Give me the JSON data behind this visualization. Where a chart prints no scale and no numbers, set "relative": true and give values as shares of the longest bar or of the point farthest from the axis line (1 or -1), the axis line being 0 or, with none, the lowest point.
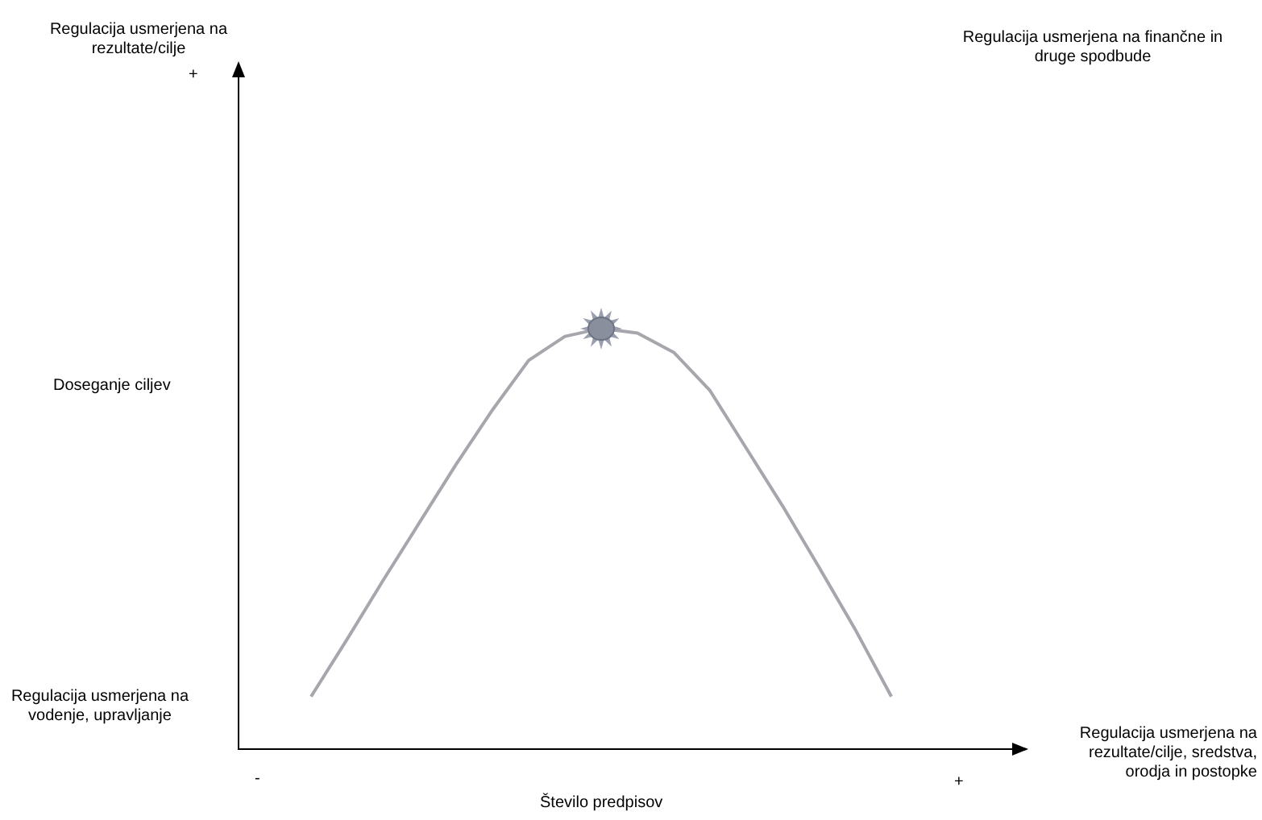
{
  "chart_data": {
    "type": "line",
    "relative": true,
    "xlabel": "Število predpisov",
    "annotations": [
      "Regulacija usmerjena na rezultate/cilje",
      "Regulacija usmerjena na finančne in druge spodbude",
      "Regulacija usmerjena na vodenje, upravljanje",
      "Regulacija usmerjena na rezultate/cilje, sredstva, orodja in postopke",
      "+",
      "-",
      "+",
      "Doseganje ciljev"
    ],
    "categories": [
      null,
      null,
      null,
      null,
      null,
      null,
      null,
      null,
      null,
      null,
      null,
      null,
      null,
      null,
      null,
      null,
      null
    ],
    "series": [
      {
        "color": "#a6a6ad",
        "values": [
          0.125,
          0.262,
          0.403,
          0.54,
          0.677,
          0.806,
          0.924,
          0.981,
          1,
          0.989,
          0.943,
          0.852,
          0.715,
          0.578,
          0.433,
          0.285,
          0.125
        ]
      }
    ],
    "grid": false,
    "legend": false,
    "marker": "none",
    "line_style": "solid"
  }
}
